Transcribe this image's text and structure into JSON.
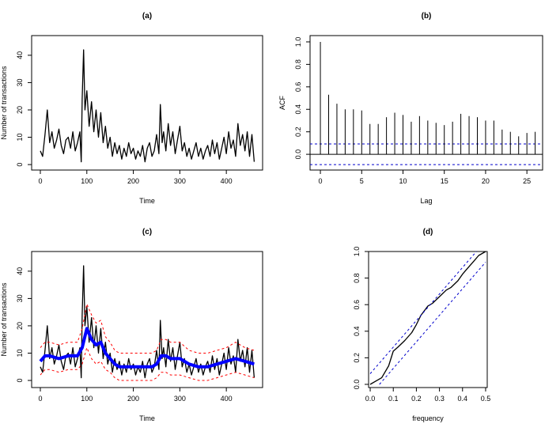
{
  "chart_data": [
    {
      "type": "line",
      "title": "(a)",
      "x_label": "Time",
      "y_label": "Number of transactions",
      "xlim": [
        -18.7,
        478
      ],
      "ylim": [
        -2,
        47.2
      ],
      "xticks": [
        0,
        100,
        200,
        300,
        400
      ],
      "yticks": [
        0,
        10,
        20,
        30,
        40
      ],
      "series": [
        {
          "color": "#000000",
          "linewidth": 1.3,
          "dash": false,
          "x": [
            0,
            5,
            10,
            15,
            20,
            25,
            30,
            35,
            40,
            45,
            50,
            55,
            60,
            65,
            70,
            75,
            80,
            85,
            88,
            90,
            93,
            96,
            100,
            105,
            110,
            115,
            120,
            125,
            130,
            135,
            140,
            145,
            150,
            155,
            160,
            165,
            170,
            175,
            180,
            185,
            190,
            195,
            200,
            205,
            210,
            215,
            220,
            225,
            230,
            235,
            240,
            245,
            250,
            255,
            258,
            262,
            265,
            270,
            275,
            280,
            285,
            290,
            295,
            300,
            305,
            310,
            315,
            320,
            325,
            330,
            335,
            340,
            345,
            350,
            355,
            360,
            365,
            370,
            375,
            380,
            385,
            390,
            395,
            400,
            405,
            410,
            415,
            420,
            425,
            430,
            435,
            440,
            445,
            450,
            455,
            460
          ],
          "values": [
            5,
            3,
            11,
            20,
            8,
            12,
            6,
            9,
            13,
            7,
            4,
            9,
            10,
            6,
            12,
            5,
            8,
            12,
            1,
            24,
            42,
            20,
            27,
            14,
            23,
            12,
            20,
            10,
            19,
            8,
            14,
            6,
            10,
            3,
            8,
            4,
            7,
            2,
            6,
            3,
            8,
            4,
            6,
            2,
            5,
            3,
            7,
            1,
            6,
            8,
            3,
            5,
            11,
            4,
            22,
            8,
            12,
            5,
            15,
            7,
            12,
            4,
            9,
            14,
            5,
            8,
            3,
            6,
            2,
            5,
            8,
            3,
            6,
            2,
            5,
            7,
            3,
            9,
            4,
            8,
            2,
            6,
            10,
            4,
            12,
            6,
            9,
            3,
            15,
            7,
            11,
            5,
            12,
            3,
            11,
            1
          ]
        }
      ]
    },
    {
      "type": "bar",
      "title": "(b)",
      "x_label": "Lag",
      "y_label": "ACF",
      "xlim": [
        -1.25,
        26.9
      ],
      "ylim": [
        -0.14,
        1.056
      ],
      "xticks": [
        0,
        5,
        10,
        15,
        20,
        25
      ],
      "yticks": [
        {
          "value": 0,
          "label": "0.0"
        },
        0.2,
        0.4,
        0.6,
        0.8,
        {
          "value": 1,
          "label": "1.0"
        }
      ],
      "conf_limits": [
        -0.092,
        0.092
      ],
      "conf_color": "#0000cc",
      "series": [
        {
          "color": "#000000",
          "linewidth": 1,
          "dash": false,
          "x": [
            0,
            1,
            2,
            3,
            4,
            5,
            6,
            7,
            8,
            9,
            10,
            11,
            12,
            13,
            14,
            15,
            16,
            17,
            18,
            19,
            20,
            21,
            22,
            23,
            24,
            25,
            26
          ],
          "values": [
            1.0,
            0.53,
            0.45,
            0.4,
            0.4,
            0.39,
            0.27,
            0.27,
            0.33,
            0.37,
            0.35,
            0.29,
            0.34,
            0.3,
            0.28,
            0.26,
            0.29,
            0.36,
            0.34,
            0.33,
            0.3,
            0.3,
            0.22,
            0.2,
            0.16,
            0.19,
            0.2
          ]
        }
      ]
    },
    {
      "type": "line",
      "title": "(c)",
      "x_label": "Time",
      "y_label": "Number of transactions",
      "xlim": [
        -18.7,
        478
      ],
      "ylim": [
        -2.6,
        47.2
      ],
      "xticks": [
        0,
        100,
        200,
        300,
        400
      ],
      "yticks": [
        0,
        10,
        20,
        30,
        40
      ],
      "series": [
        {
          "color": "#000000",
          "linewidth": 1.3,
          "dash": false,
          "x": [
            0,
            5,
            10,
            15,
            20,
            25,
            30,
            35,
            40,
            45,
            50,
            55,
            60,
            65,
            70,
            75,
            80,
            85,
            88,
            90,
            93,
            96,
            100,
            105,
            110,
            115,
            120,
            125,
            130,
            135,
            140,
            145,
            150,
            155,
            160,
            165,
            170,
            175,
            180,
            185,
            190,
            195,
            200,
            205,
            210,
            215,
            220,
            225,
            230,
            235,
            240,
            245,
            250,
            255,
            258,
            262,
            265,
            270,
            275,
            280,
            285,
            290,
            295,
            300,
            305,
            310,
            315,
            320,
            325,
            330,
            335,
            340,
            345,
            350,
            355,
            360,
            365,
            370,
            375,
            380,
            385,
            390,
            395,
            400,
            405,
            410,
            415,
            420,
            425,
            430,
            435,
            440,
            445,
            450,
            455,
            460
          ],
          "values": [
            5,
            3,
            11,
            20,
            8,
            12,
            6,
            9,
            13,
            7,
            4,
            9,
            10,
            6,
            12,
            5,
            8,
            12,
            1,
            24,
            42,
            20,
            27,
            14,
            23,
            12,
            20,
            10,
            19,
            8,
            14,
            6,
            10,
            3,
            8,
            4,
            7,
            2,
            6,
            3,
            8,
            4,
            6,
            2,
            5,
            3,
            7,
            1,
            6,
            8,
            3,
            5,
            11,
            4,
            22,
            8,
            12,
            5,
            15,
            7,
            12,
            4,
            9,
            14,
            5,
            8,
            3,
            6,
            2,
            5,
            8,
            3,
            6,
            2,
            5,
            7,
            3,
            9,
            4,
            8,
            2,
            6,
            10,
            4,
            12,
            6,
            9,
            3,
            15,
            7,
            11,
            5,
            12,
            3,
            11,
            1
          ]
        },
        {
          "color": "#ff0000",
          "linewidth": 1,
          "dash": true,
          "x": [
            0,
            10,
            20,
            40,
            60,
            80,
            90,
            100,
            110,
            120,
            130,
            140,
            150,
            160,
            170,
            180,
            200,
            220,
            240,
            250,
            260,
            270,
            280,
            300,
            320,
            340,
            360,
            380,
            400,
            420,
            440,
            460
          ],
          "values": [
            12,
            14,
            14,
            13,
            14,
            14,
            19,
            28,
            24,
            21,
            22,
            16,
            14,
            11,
            10,
            10,
            10,
            10,
            10,
            11,
            15,
            15,
            14,
            14,
            11,
            10,
            10,
            11,
            12,
            14,
            12,
            11
          ]
        },
        {
          "color": "#ff0000",
          "linewidth": 1,
          "dash": true,
          "x": [
            0,
            10,
            20,
            40,
            60,
            80,
            90,
            100,
            110,
            120,
            130,
            140,
            150,
            160,
            170,
            180,
            200,
            220,
            240,
            250,
            260,
            270,
            280,
            300,
            320,
            340,
            360,
            380,
            400,
            420,
            440,
            460
          ],
          "values": [
            2,
            4,
            4,
            3,
            4,
            4,
            6,
            12,
            8,
            6,
            7,
            4,
            3,
            1,
            0,
            0,
            0,
            0,
            0,
            1,
            3,
            3,
            2,
            2,
            1,
            0,
            0,
            1,
            2,
            3,
            2,
            1
          ]
        },
        {
          "color": "#0000ff",
          "linewidth": 4,
          "dash": false,
          "x": [
            0,
            10,
            20,
            40,
            60,
            80,
            90,
            100,
            110,
            120,
            130,
            140,
            150,
            160,
            170,
            180,
            200,
            220,
            240,
            250,
            260,
            270,
            280,
            300,
            320,
            340,
            360,
            380,
            400,
            420,
            440,
            460
          ],
          "values": [
            7,
            9,
            9,
            8,
            9,
            9,
            12,
            19,
            15,
            13,
            14,
            10,
            8,
            6,
            5,
            5,
            5,
            5,
            5,
            6,
            9,
            9,
            8,
            8,
            6,
            5,
            5,
            6,
            7,
            8,
            7,
            6
          ]
        }
      ]
    },
    {
      "type": "line",
      "title": "(d)",
      "x_label": "frequency",
      "xlim": [
        -0.007,
        0.507
      ],
      "ylim": [
        -0.024,
        1.0
      ],
      "xticks": [
        {
          "value": 0,
          "label": "0.0"
        },
        0.1,
        0.2,
        0.3,
        0.4,
        0.5
      ],
      "yticks": [
        {
          "value": 0,
          "label": "0.0"
        },
        0.2,
        0.4,
        0.6,
        0.8,
        {
          "value": 1,
          "label": "1.0"
        }
      ],
      "series": [
        {
          "color": "#000000",
          "linewidth": 1.3,
          "dash": false,
          "x": [
            0,
            0.02,
            0.05,
            0.08,
            0.1,
            0.12,
            0.15,
            0.18,
            0.2,
            0.22,
            0.25,
            0.27,
            0.3,
            0.33,
            0.35,
            0.38,
            0.4,
            0.42,
            0.45,
            0.47,
            0.5
          ],
          "values": [
            0,
            0.02,
            0.05,
            0.14,
            0.25,
            0.28,
            0.33,
            0.39,
            0.45,
            0.52,
            0.59,
            0.61,
            0.66,
            0.71,
            0.73,
            0.78,
            0.83,
            0.87,
            0.93,
            0.97,
            1.0
          ]
        },
        {
          "color": "#0000cc",
          "linewidth": 1,
          "dash": true,
          "x": [
            0,
            0.46
          ],
          "values": [
            0.08,
            1.0
          ]
        },
        {
          "color": "#0000cc",
          "linewidth": 1,
          "dash": true,
          "x": [
            0.04,
            0.5
          ],
          "values": [
            0,
            0.92
          ]
        }
      ]
    }
  ]
}
